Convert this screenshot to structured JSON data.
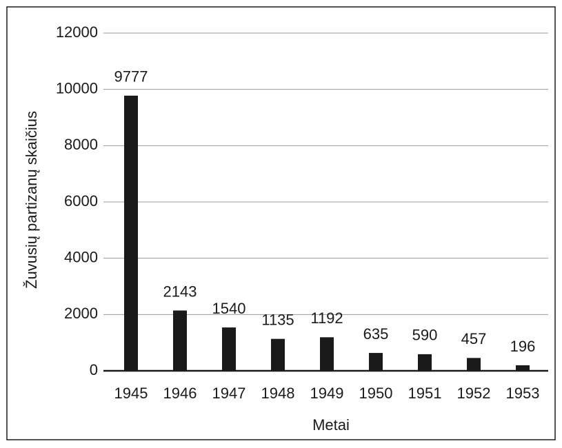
{
  "chart_data": {
    "type": "bar",
    "x_label": "Metai",
    "y_label": "Žuvusių partizanų skaičius",
    "categories": [
      "1945",
      "1946",
      "1947",
      "1948",
      "1949",
      "1950",
      "1951",
      "1952",
      "1953"
    ],
    "values": [
      9777,
      2143,
      1540,
      1135,
      1192,
      635,
      590,
      457,
      196
    ],
    "color": "#1a1a1a",
    "ylim": [
      0,
      12000
    ],
    "yticks": [
      0,
      2000,
      4000,
      6000,
      8000,
      10000,
      12000
    ],
    "grid": true
  }
}
